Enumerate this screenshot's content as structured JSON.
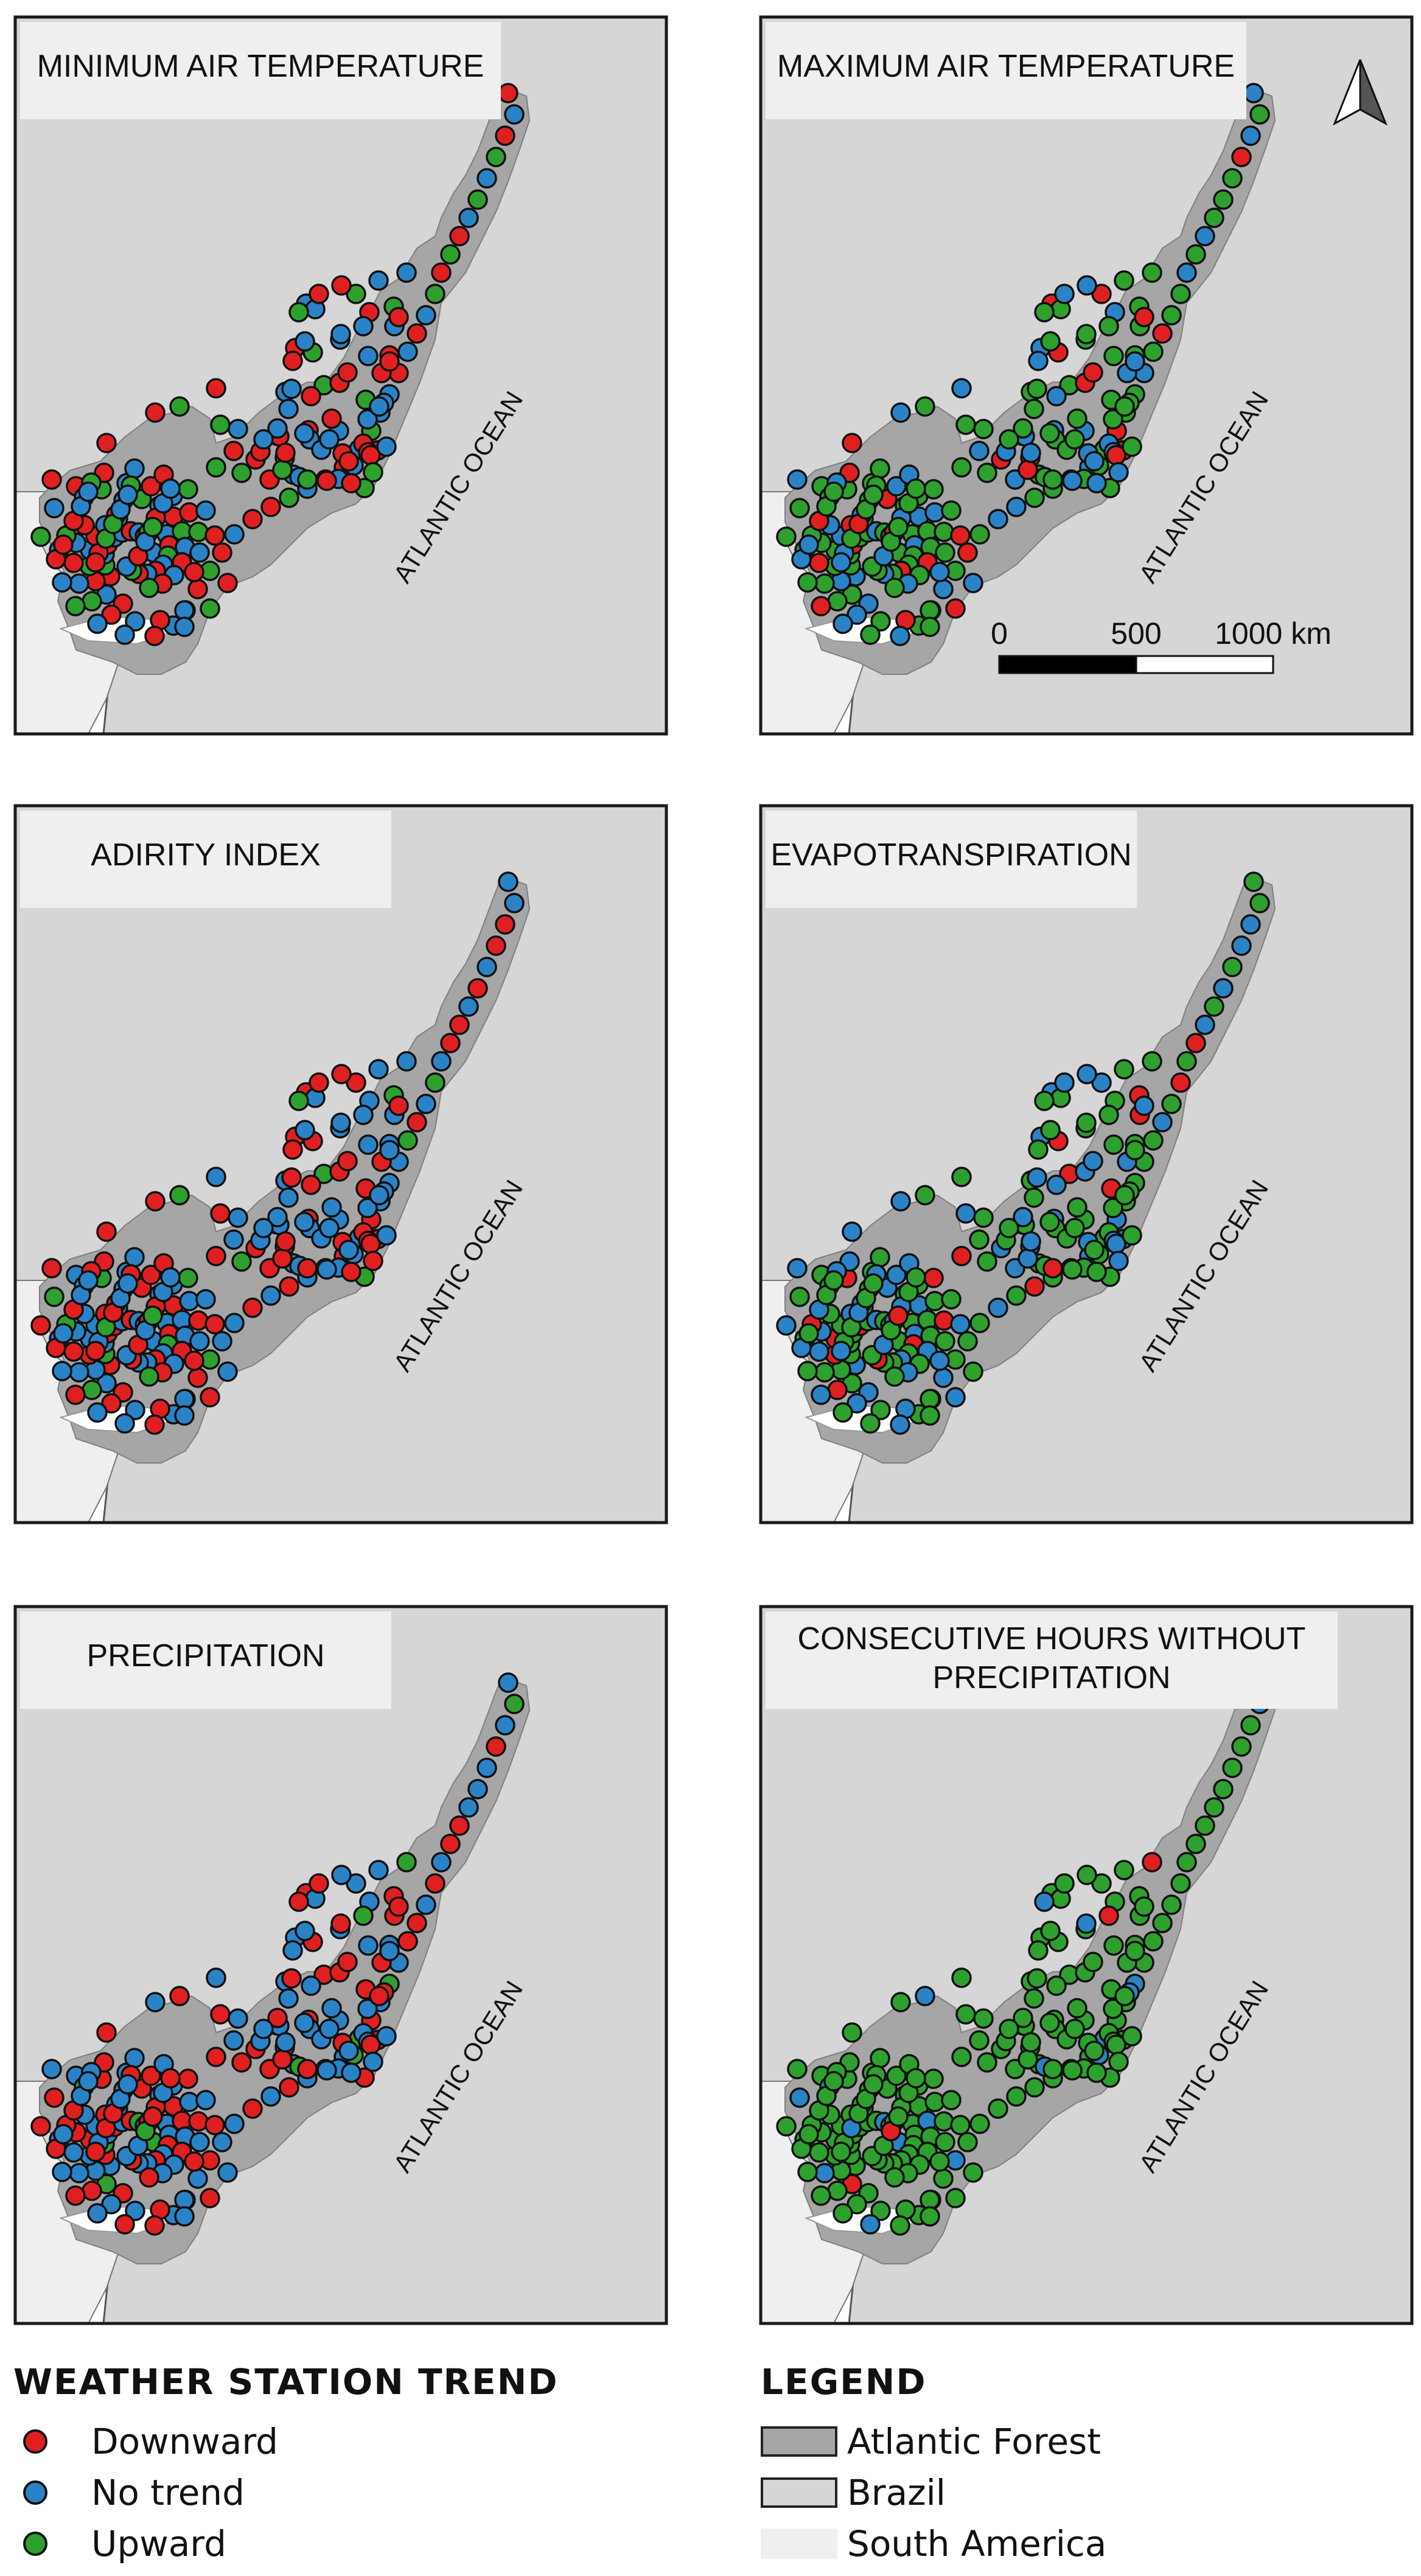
{
  "panels": [
    {
      "id": "tmin",
      "title": [
        "MINIMUM AIR TEMPERATURE"
      ],
      "ocean": "ATLANTIC OCEAN",
      "profile": [
        0.38,
        0.4,
        0.22
      ]
    },
    {
      "id": "tmax",
      "title": [
        "MAXIMUM AIR TEMPERATURE"
      ],
      "ocean": "ATLANTIC OCEAN",
      "profile": [
        0.15,
        0.3,
        0.55
      ]
    },
    {
      "id": "aridity",
      "title": [
        "ADIRITY INDEX"
      ],
      "ocean": "ATLANTIC OCEAN",
      "profile": [
        0.4,
        0.5,
        0.1
      ]
    },
    {
      "id": "evapo",
      "title": [
        "EVAPOTRANSPIRATION"
      ],
      "ocean": "ATLANTIC OCEAN",
      "profile": [
        0.12,
        0.33,
        0.55
      ]
    },
    {
      "id": "precip",
      "title": [
        "PRECIPITATION"
      ],
      "ocean": "ATLANTIC OCEAN",
      "profile": [
        0.42,
        0.52,
        0.06
      ]
    },
    {
      "id": "chwp",
      "title": [
        "CONSECUTIVE HOURS WITHOUT",
        "PRECIPITATION"
      ],
      "ocean": "ATLANTIC OCEAN",
      "profile": [
        0.02,
        0.08,
        0.9
      ]
    }
  ],
  "scalebar": {
    "labels": [
      "0",
      "500",
      "1000 km"
    ]
  },
  "trend_legend": {
    "title": "WEATHER STATION TREND",
    "items": [
      {
        "label": "Downward",
        "color": "#e02020"
      },
      {
        "label": "No trend",
        "color": "#2b83c7"
      },
      {
        "label": "Upward",
        "color": "#2ea02e"
      }
    ]
  },
  "legend": {
    "title": "LEGEND",
    "items": [
      {
        "label": "Atlantic Forest",
        "color": "#a6a6a6"
      },
      {
        "label": "Brazil",
        "color": "#d6d6d6"
      },
      {
        "label": "South America",
        "color": "#efefef"
      }
    ]
  },
  "colors": {
    "outside": "#ffffff",
    "frame": "#1a1a1a",
    "title_box": "#efefef",
    "text": "#111111"
  },
  "icons": [
    "north-arrow-icon"
  ]
}
